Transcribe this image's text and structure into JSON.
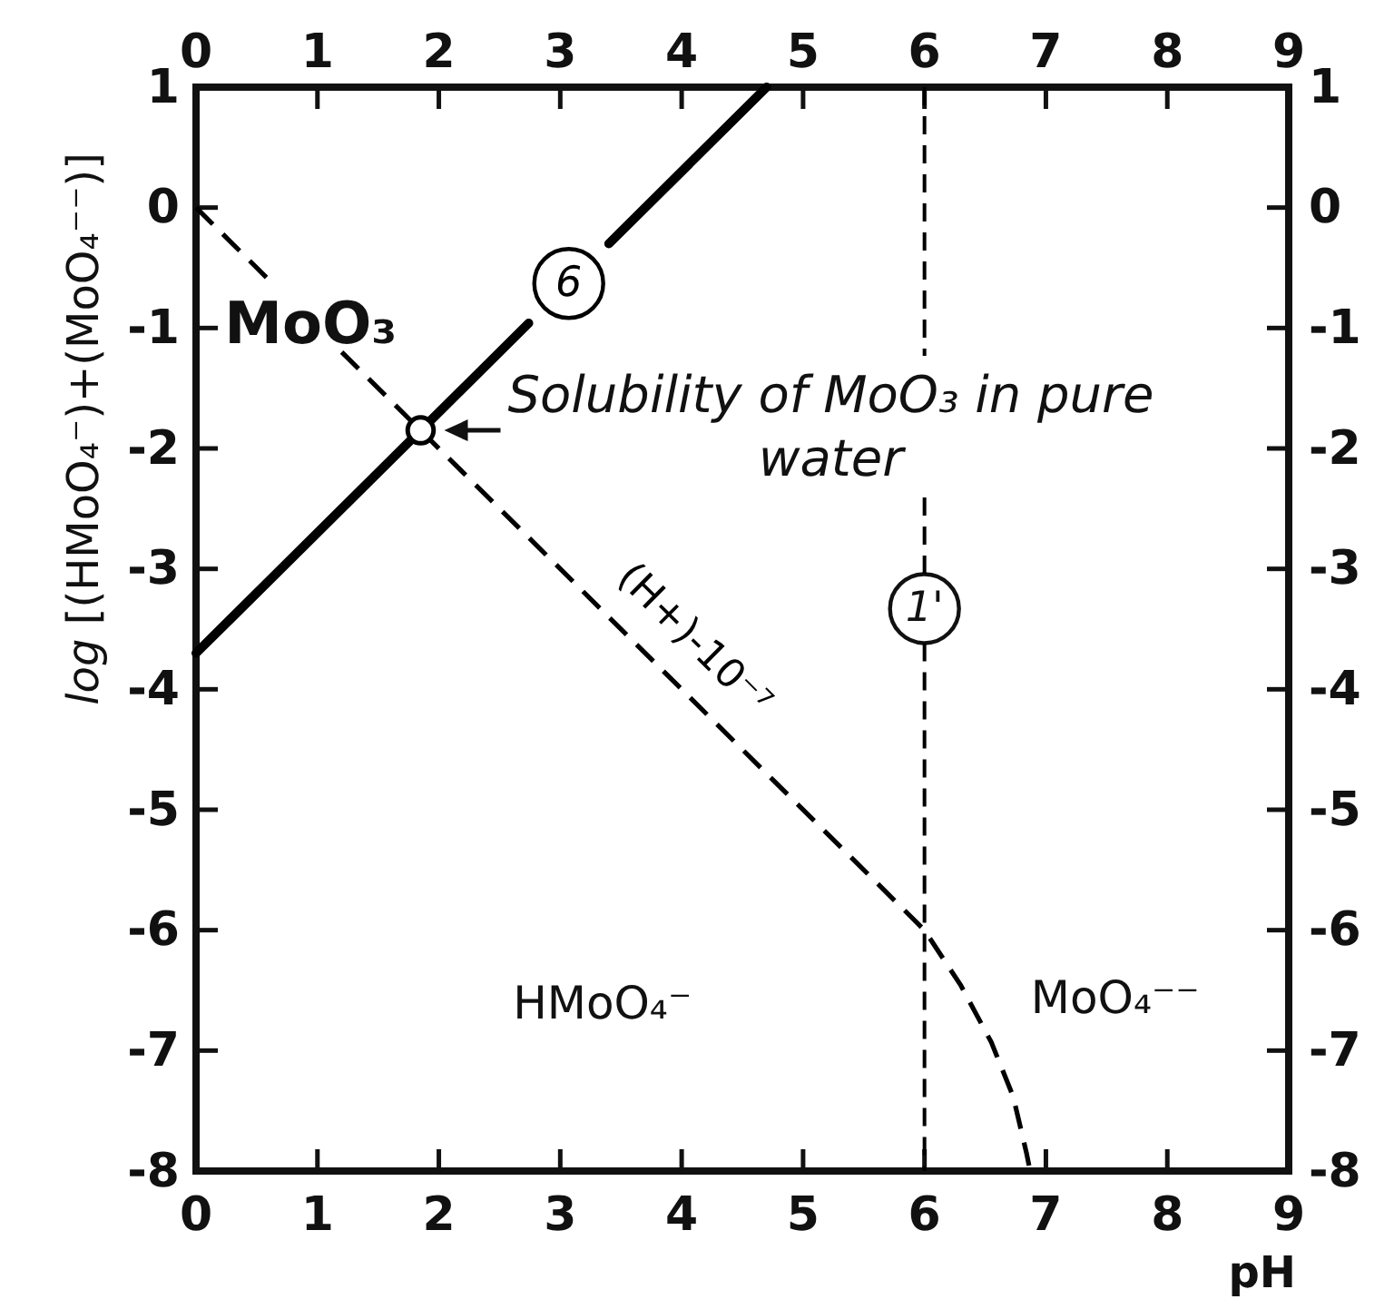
{
  "chart_data": {
    "type": "line",
    "xlabel": "pH",
    "ylabel": "log [(HMoO₄⁻)+(MoO₄⁻⁻)]",
    "xlim": [
      0,
      9
    ],
    "xticks": [
      0,
      1,
      2,
      3,
      4,
      5,
      6,
      7,
      8,
      9
    ],
    "x2lim": [
      0,
      9
    ],
    "x2ticks": [
      0,
      1,
      2,
      3,
      4,
      5,
      6,
      7,
      8,
      9
    ],
    "ylim": [
      -8,
      1
    ],
    "yticks": [
      -8,
      -7,
      -6,
      -5,
      -4,
      -3,
      -2,
      -1,
      0,
      1
    ],
    "y2lim": [
      -8,
      1
    ],
    "y2ticks": [
      -8,
      -7,
      -6,
      -5,
      -4,
      -3,
      -2,
      -1,
      0,
      1
    ],
    "series": [
      {
        "name": "6",
        "color": "#000000",
        "line_style": "solid",
        "x": [
          0,
          1.85,
          2.74,
          3.07,
          3.4,
          4.7
        ],
        "values": [
          -3.7,
          -1.85,
          -0.96,
          null,
          -0.3,
          1
        ]
      },
      {
        "name": "(H+)-10⁻⁷",
        "color": "#000000",
        "line_style": "dashed",
        "x": [
          0,
          0.66,
          0.9,
          1.2,
          1.85,
          4,
          6,
          6.3,
          6.55,
          6.73,
          6.84,
          6.87
        ],
        "values": [
          0,
          -0.66,
          null,
          -1.2,
          -1.85,
          -4,
          -6,
          -6.46,
          -6.93,
          -7.38,
          -7.85,
          -8
        ]
      },
      {
        "type": "scatter",
        "color": "#000000",
        "marker": "circle",
        "x": [
          1.85
        ],
        "values": [
          -1.85
        ]
      }
    ],
    "ref_lines": [
      {
        "axis": "x",
        "value": 6,
        "color": "#000000",
        "line_style": "dashed"
      }
    ],
    "annotations": [
      {
        "text": "Solubility of MoO₃ in pure water",
        "x": 1.85,
        "y": -1.85
      },
      {
        "text": "1'",
        "x": 6,
        "y": -3.33
      },
      "MoO₃",
      "HMoO₄⁻",
      "MoO₄⁻⁻"
    ]
  }
}
